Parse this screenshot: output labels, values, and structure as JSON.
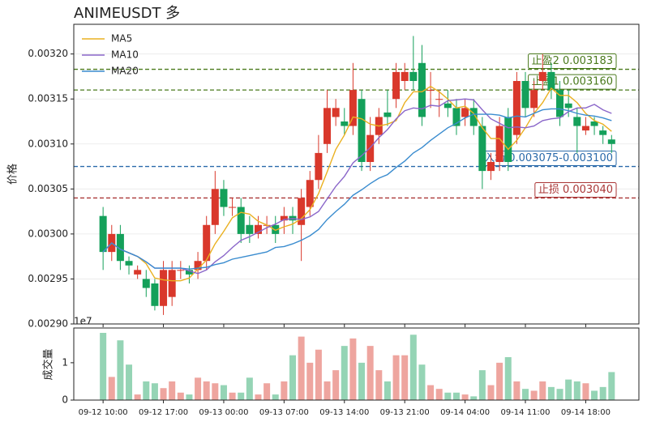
{
  "chart_data": {
    "type": "candlestick",
    "title": "ANIMEUSDT 多",
    "ylabel": "价格",
    "categories": [
      "09-12 10:00",
      null,
      null,
      null,
      null,
      null,
      null,
      "09-12 17:00",
      null,
      null,
      null,
      null,
      null,
      null,
      "09-13 00:00",
      null,
      null,
      null,
      null,
      null,
      null,
      "09-13 07:00",
      null,
      null,
      null,
      null,
      null,
      null,
      "09-13 14:00",
      null,
      null,
      null,
      null,
      null,
      null,
      "09-13 21:00",
      null,
      null,
      null,
      null,
      null,
      null,
      "09-14 04:00",
      null,
      null,
      null,
      null,
      null,
      null,
      "09-14 11:00",
      null,
      null,
      null,
      null,
      null,
      null,
      "09-14 18:00",
      null,
      null,
      null
    ],
    "open": [
      0.00302,
      0.00298,
      0.003,
      0.00297,
      0.002955,
      0.00295,
      0.002945,
      0.00292,
      0.00293,
      0.00296,
      0.00296,
      0.00296,
      0.00297,
      0.00301,
      0.00305,
      0.00303,
      0.00303,
      0.00301,
      0.003,
      0.00301,
      0.00301,
      0.003015,
      0.00302,
      0.00301,
      0.00303,
      0.00306,
      0.0031,
      0.00313,
      0.003125,
      0.00312,
      0.00315,
      0.00308,
      0.00311,
      0.003135,
      0.00315,
      0.00317,
      0.00318,
      0.00319,
      0.00316,
      0.00315,
      0.003145,
      0.00314,
      0.00313,
      0.00314,
      0.00312,
      0.00307,
      0.00308,
      0.00313,
      0.00311,
      0.00317,
      0.00314,
      0.00317,
      0.00318,
      0.00316,
      0.003145,
      0.00313,
      0.003115,
      0.003125,
      0.003115,
      0.003105
    ],
    "high": [
      0.00303,
      0.00301,
      0.00301,
      0.002975,
      0.002965,
      0.00296,
      0.00295,
      0.00297,
      0.00297,
      0.00297,
      0.002965,
      0.00298,
      0.00302,
      0.00307,
      0.00306,
      0.00304,
      0.00304,
      0.00302,
      0.00302,
      0.00302,
      0.00302,
      0.00303,
      0.00303,
      0.00305,
      0.00307,
      0.00311,
      0.00316,
      0.00315,
      0.00314,
      0.00319,
      0.00316,
      0.00313,
      0.00314,
      0.00316,
      0.00319,
      0.00319,
      0.00322,
      0.00321,
      0.00318,
      0.00316,
      0.00316,
      0.00315,
      0.00315,
      0.00315,
      0.00313,
      0.00309,
      0.00313,
      0.00314,
      0.00318,
      0.00318,
      0.00317,
      0.0032,
      0.00319,
      0.00317,
      0.00316,
      0.00314,
      0.00313,
      0.00313,
      0.00312,
      0.00311
    ],
    "low": [
      0.00296,
      0.00297,
      0.00296,
      0.002955,
      0.00295,
      0.00293,
      0.002915,
      0.00291,
      0.00292,
      0.00295,
      0.002945,
      0.00295,
      0.00296,
      0.003,
      0.00302,
      0.00302,
      0.00299,
      0.00299,
      0.002995,
      0.003,
      0.00299,
      0.003,
      0.003,
      0.00297,
      0.00302,
      0.00305,
      0.00309,
      0.00312,
      0.00311,
      0.00311,
      0.00307,
      0.00307,
      0.0031,
      0.00312,
      0.00314,
      0.00316,
      0.00316,
      0.00312,
      0.00314,
      0.00313,
      0.00313,
      0.00311,
      0.00312,
      0.00311,
      0.00305,
      0.00306,
      0.00307,
      0.00307,
      0.0031,
      0.00313,
      0.00313,
      0.00316,
      0.00315,
      0.00312,
      0.00313,
      0.00309,
      0.00311,
      0.00311,
      0.0031,
      0.00309
    ],
    "close": [
      0.00298,
      0.003,
      0.00297,
      0.002965,
      0.00296,
      0.00294,
      0.00292,
      0.00296,
      0.00296,
      0.00296,
      0.002955,
      0.00297,
      0.00301,
      0.00305,
      0.00303,
      0.00303,
      0.003,
      0.003,
      0.00301,
      0.00301,
      0.003,
      0.00302,
      0.003015,
      0.00304,
      0.00306,
      0.00309,
      0.00314,
      0.00314,
      0.00312,
      0.00316,
      0.00308,
      0.00311,
      0.00313,
      0.00313,
      0.00318,
      0.00318,
      0.00317,
      0.00313,
      0.00316,
      0.00315,
      0.00314,
      0.00312,
      0.00314,
      0.00312,
      0.00307,
      0.00308,
      0.00312,
      0.00308,
      0.00317,
      0.00314,
      0.00316,
      0.00318,
      0.00316,
      0.00313,
      0.00314,
      0.00312,
      0.00312,
      0.00312,
      0.00311,
      0.0031
    ],
    "up_color": "#d9382b",
    "down_color": "#14a05a",
    "series": [
      {
        "name": "MA5",
        "color": "#eab020",
        "values": [
          0.00298,
          0.00299,
          0.002983,
          0.002979,
          0.002975,
          0.002967,
          0.002951,
          0.002949,
          0.002948,
          0.002948,
          0.002951,
          0.002961,
          0.002971,
          0.002989,
          0.003003,
          0.003018,
          0.003024,
          0.003022,
          0.003014,
          0.00301,
          0.003004,
          0.003008,
          0.003011,
          0.003017,
          0.003027,
          0.003045,
          0.003069,
          0.003094,
          0.00311,
          0.00313,
          0.003128,
          0.003122,
          0.00312,
          0.003122,
          0.003126,
          0.003146,
          0.003158,
          0.003158,
          0.003164,
          0.003158,
          0.00315,
          0.00314,
          0.003142,
          0.003134,
          0.003118,
          0.003106,
          0.003106,
          0.003094,
          0.003104,
          0.003118,
          0.003134,
          0.003146,
          0.003162,
          0.003154,
          0.003154,
          0.003146,
          0.003134,
          0.003126,
          0.003122,
          0.003114
        ]
      },
      {
        "name": "MA10",
        "color": "#8a66c9",
        "values": [
          0.00298,
          0.00299,
          0.002983,
          0.002979,
          0.002975,
          0.002969,
          0.002962,
          0.002962,
          0.002962,
          0.002962,
          0.002959,
          0.002956,
          0.00296,
          0.002969,
          0.002976,
          0.002985,
          0.002993,
          0.002997,
          0.003002,
          0.003007,
          0.003011,
          0.003016,
          0.003017,
          0.003016,
          0.003019,
          0.003025,
          0.003039,
          0.003053,
          0.003064,
          0.003079,
          0.003087,
          0.003096,
          0.003107,
          0.003116,
          0.003128,
          0.003137,
          0.00314,
          0.003139,
          0.003143,
          0.003142,
          0.003148,
          0.003149,
          0.00315,
          0.003149,
          0.003138,
          0.003128,
          0.003123,
          0.003118,
          0.003119,
          0.003118,
          0.00312,
          0.003126,
          0.003128,
          0.003129,
          0.003136,
          0.00314,
          0.00314,
          0.003144,
          0.003138,
          0.003134
        ]
      },
      {
        "name": "MA20",
        "color": "#3a8ccf",
        "values": [
          0.00298,
          0.00299,
          0.002983,
          0.002979,
          0.002975,
          0.002969,
          0.002962,
          0.002962,
          0.002962,
          0.002962,
          0.002961,
          0.002962,
          0.002963,
          0.002966,
          0.002968,
          0.002972,
          0.002974,
          0.002976,
          0.002978,
          0.00298,
          0.002985,
          0.002986,
          0.002989,
          0.002993,
          0.002998,
          0.003005,
          0.003016,
          0.003025,
          0.003033,
          0.003043,
          0.003049,
          0.003056,
          0.003062,
          0.003066,
          0.003074,
          0.003081,
          0.00309,
          0.003096,
          0.003104,
          0.003111,
          0.003118,
          0.003123,
          0.003129,
          0.003133,
          0.003133,
          0.003133,
          0.003132,
          0.003129,
          0.003131,
          0.00313,
          0.003134,
          0.003138,
          0.003139,
          0.003139,
          0.003137,
          0.003134,
          0.003132,
          0.003131,
          0.003129,
          0.003126
        ]
      }
    ],
    "legend": "upper left",
    "levels": [
      {
        "label": "止盈2 0.003183",
        "value": 0.003183,
        "color": "#4a7a1c"
      },
      {
        "label": "止盈1 0.003160",
        "value": 0.00316,
        "color": "#4a7a1c"
      },
      {
        "label": "入场 0.003075-0.003100",
        "value": 0.003075,
        "color": "#2a6aaa"
      },
      {
        "label": "止损 0.003040",
        "value": 0.00304,
        "color": "#aa3636"
      }
    ],
    "ylim": [
      0.0029,
      0.003233
    ],
    "yticks": [
      {
        "value": 0.0029,
        "label": "0.00290"
      },
      {
        "value": 0.00295,
        "label": "0.00295"
      },
      {
        "value": 0.003,
        "label": "0.00300"
      },
      {
        "value": 0.00305,
        "label": "0.00305"
      },
      {
        "value": 0.0031,
        "label": "0.00310"
      },
      {
        "value": 0.00315,
        "label": "0.00315"
      },
      {
        "value": 0.0032,
        "label": "0.00320"
      }
    ],
    "grid": true,
    "volume": {
      "ylabel": "成交量",
      "offset_label": "1e7",
      "values": [
        1.8,
        0.62,
        1.6,
        0.95,
        0.15,
        0.5,
        0.45,
        0.32,
        0.5,
        0.2,
        0.15,
        0.6,
        0.5,
        0.45,
        0.4,
        0.2,
        0.2,
        0.6,
        0.15,
        0.45,
        0.15,
        0.5,
        1.2,
        1.7,
        1.0,
        1.35,
        0.5,
        0.8,
        1.45,
        1.65,
        1.0,
        1.45,
        0.8,
        0.5,
        1.2,
        1.2,
        1.75,
        0.95,
        0.4,
        0.3,
        0.2,
        0.2,
        0.15,
        0.1,
        0.8,
        0.4,
        1.0,
        1.15,
        0.5,
        0.3,
        0.25,
        0.5,
        0.35,
        0.3,
        0.55,
        0.5,
        0.45,
        0.25,
        0.35,
        0.75
      ],
      "ylim": [
        0,
        1.93
      ],
      "yticks": [
        0,
        1
      ]
    }
  }
}
